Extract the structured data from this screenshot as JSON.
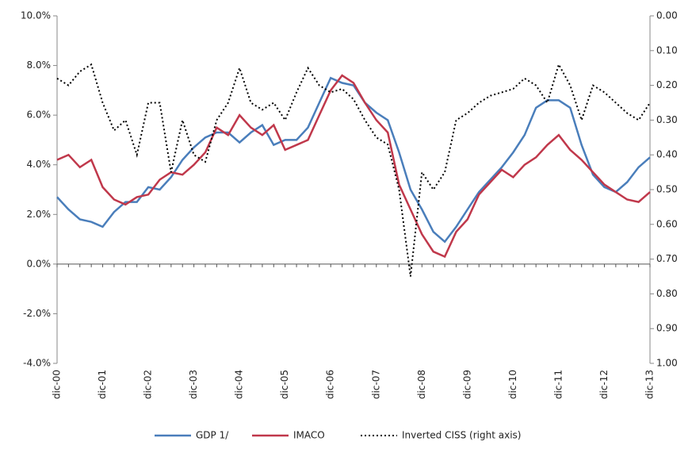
{
  "chart_data": {
    "type": "line",
    "categories": [
      "dic-00",
      null,
      null,
      null,
      "dic-01",
      null,
      null,
      null,
      "dic-02",
      null,
      null,
      null,
      "dic-03",
      null,
      null,
      null,
      "dic-04",
      null,
      null,
      null,
      "dic-05",
      null,
      null,
      null,
      "dic-06",
      null,
      null,
      null,
      "dic-07",
      null,
      null,
      null,
      "dic-08",
      null,
      null,
      null,
      "dic-09",
      null,
      null,
      null,
      "dic-10",
      null,
      null,
      null,
      "dic-11",
      null,
      null,
      null,
      "dic-12",
      null,
      null,
      null,
      "dic-13"
    ],
    "series": [
      {
        "name": "GDP 1/",
        "color": "#4a7ebb",
        "style": "solid",
        "values": [
          2.7,
          2.2,
          1.8,
          1.7,
          1.5,
          2.1,
          2.5,
          2.5,
          3.1,
          3.0,
          3.5,
          4.2,
          4.7,
          5.1,
          5.3,
          5.3,
          4.9,
          5.3,
          5.6,
          4.8,
          5.0,
          5.0,
          5.5,
          6.5,
          7.5,
          7.3,
          7.2,
          6.5,
          6.1,
          5.8,
          4.5,
          3.0,
          2.2,
          1.3,
          0.9,
          1.5,
          2.2,
          2.9,
          3.4,
          3.9,
          4.5,
          5.2,
          6.3,
          6.6,
          6.6,
          6.3,
          4.8,
          3.6,
          3.1,
          2.9,
          3.3,
          3.9,
          4.3
        ]
      },
      {
        "name": "IMACO",
        "color": "#c0384b",
        "style": "solid",
        "values": [
          4.2,
          4.4,
          3.9,
          4.2,
          3.1,
          2.6,
          2.4,
          2.7,
          2.8,
          3.4,
          3.7,
          3.6,
          4.0,
          4.5,
          5.5,
          5.2,
          6.0,
          5.5,
          5.2,
          5.6,
          4.6,
          4.8,
          5.0,
          6.0,
          7.0,
          7.6,
          7.3,
          6.5,
          5.8,
          5.3,
          3.2,
          2.2,
          1.2,
          0.5,
          0.3,
          1.3,
          1.8,
          2.8,
          3.3,
          3.8,
          3.5,
          4.0,
          4.3,
          4.8,
          5.2,
          4.6,
          4.2,
          3.7,
          3.2,
          2.9,
          2.6,
          2.5,
          2.9
        ]
      },
      {
        "name": "Inverted CISS (right axis)",
        "color": "#000000",
        "style": "dotted",
        "axis": "y2",
        "values": [
          0.18,
          0.2,
          0.16,
          0.14,
          0.25,
          0.33,
          0.3,
          0.4,
          0.25,
          0.25,
          0.45,
          0.3,
          0.4,
          0.42,
          0.3,
          0.25,
          0.15,
          0.25,
          0.27,
          0.25,
          0.3,
          0.22,
          0.15,
          0.2,
          0.22,
          0.21,
          0.24,
          0.3,
          0.35,
          0.37,
          0.5,
          0.75,
          0.45,
          0.5,
          0.45,
          0.3,
          0.28,
          0.25,
          0.23,
          0.22,
          0.21,
          0.18,
          0.2,
          0.25,
          0.14,
          0.2,
          0.3,
          0.2,
          0.22,
          0.25,
          0.28,
          0.3,
          0.25
        ]
      }
    ],
    "ylim": [
      -4,
      10
    ],
    "yticks": [
      {
        "value": -4,
        "label": "-4.0%"
      },
      {
        "value": -2,
        "label": "-2.0%"
      },
      {
        "value": 0,
        "label": "0.0%"
      },
      {
        "value": 2,
        "label": "2.0%"
      },
      {
        "value": 4,
        "label": "4.0%"
      },
      {
        "value": 6,
        "label": "6.0%"
      },
      {
        "value": 8,
        "label": "8.0%"
      },
      {
        "value": 10,
        "label": "10.0%"
      }
    ],
    "y2lim": [
      0,
      1
    ],
    "y2_inverted": true,
    "y2ticks": [
      {
        "value": 0,
        "label": "0.00"
      },
      {
        "value": 0.1,
        "label": "0.10"
      },
      {
        "value": 0.2,
        "label": "0.20"
      },
      {
        "value": 0.3,
        "label": "0.30"
      },
      {
        "value": 0.4,
        "label": "0.40"
      },
      {
        "value": 0.5,
        "label": "0.50"
      },
      {
        "value": 0.6,
        "label": "0.60"
      },
      {
        "value": 0.7,
        "label": "0.70"
      },
      {
        "value": 0.8,
        "label": "0.80"
      },
      {
        "value": 0.9,
        "label": "0.90"
      },
      {
        "value": 1,
        "label": "1.00"
      }
    ],
    "grid": false,
    "legend": "bottom"
  }
}
